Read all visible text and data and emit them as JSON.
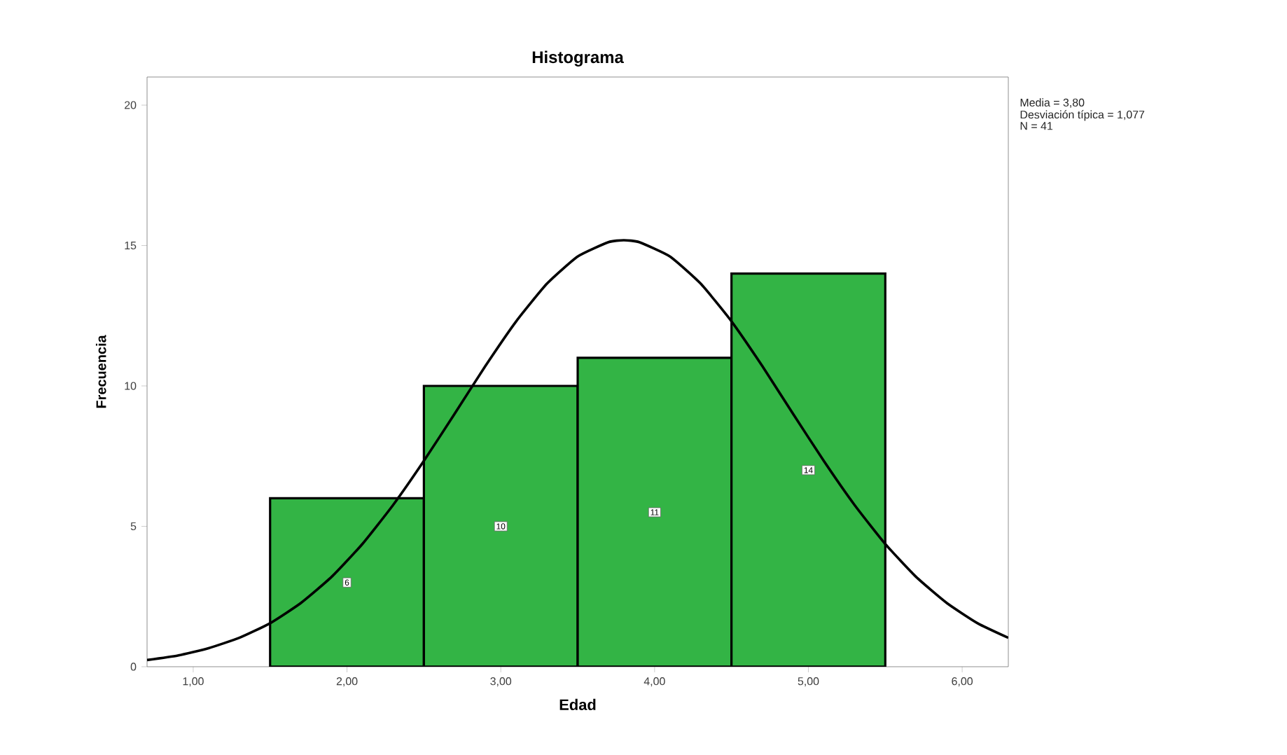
{
  "chart_data": {
    "type": "histogram",
    "title": "Histograma",
    "xlabel": "Edad",
    "ylabel": "Frecuencia",
    "annotations": [
      "Media = 3,80",
      "Desviación típica = 1,077",
      "N = 41"
    ],
    "series": [
      {
        "color": "#33b445",
        "bins": [
          1.5,
          2.5,
          3.5,
          4.5,
          5.5
        ],
        "values": [
          6,
          10,
          11,
          14
        ],
        "value_labels": [
          "6",
          "10",
          "11",
          "14"
        ]
      },
      {
        "type": "line",
        "color": "#000000",
        "x": [
          0.7,
          0.9,
          1.1,
          1.3,
          1.5,
          1.7,
          1.9,
          2.1,
          2.3,
          2.5,
          2.7,
          2.9,
          3.1,
          3.3,
          3.5,
          3.7,
          3.8,
          3.9,
          4.1,
          4.3,
          4.5,
          4.7,
          4.9,
          5.1,
          5.3,
          5.5,
          5.7,
          5.9,
          6.1,
          6.3
        ],
        "values": [
          0.24,
          0.4,
          0.66,
          1.03,
          1.55,
          2.27,
          3.2,
          4.37,
          5.76,
          7.33,
          9.01,
          10.71,
          12.3,
          13.64,
          14.61,
          15.12,
          15.19,
          15.12,
          14.61,
          13.64,
          12.3,
          10.71,
          9.01,
          7.33,
          5.76,
          4.37,
          3.2,
          2.27,
          1.55,
          1.03
        ]
      }
    ],
    "xlim": [
      0.7,
      6.3
    ],
    "ylim": [
      0,
      21
    ],
    "xticks": [
      {
        "value": 1,
        "label": "1,00"
      },
      {
        "value": 2,
        "label": "2,00"
      },
      {
        "value": 3,
        "label": "3,00"
      },
      {
        "value": 4,
        "label": "4,00"
      },
      {
        "value": 5,
        "label": "5,00"
      },
      {
        "value": 6,
        "label": "6,00"
      }
    ],
    "yticks": [
      0,
      5,
      10,
      15,
      20
    ],
    "grid": false,
    "legend": false,
    "marker": "none",
    "line_style": "solid"
  }
}
